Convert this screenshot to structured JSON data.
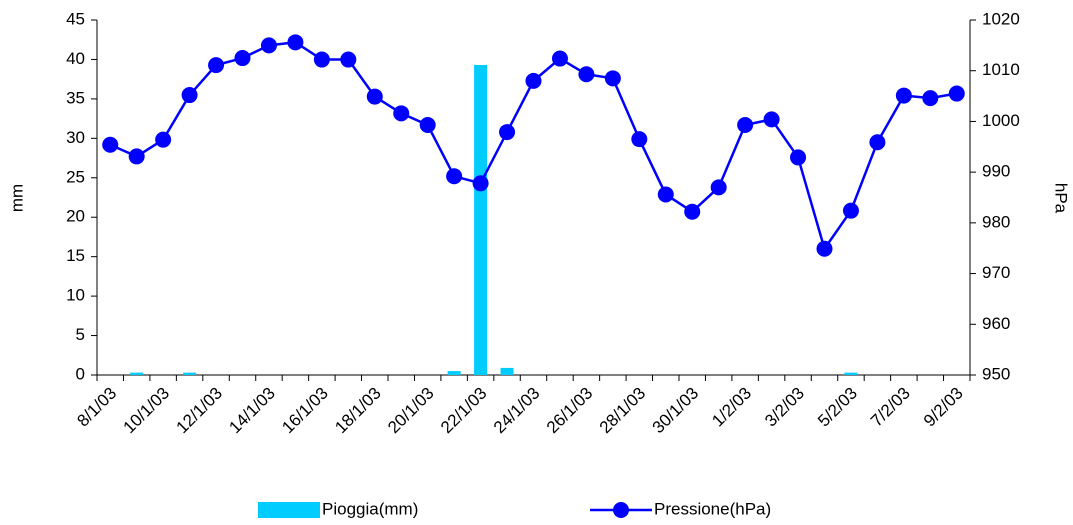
{
  "chart_data": {
    "type": "bar_line",
    "categories": [
      "8/1/03",
      null,
      "10/1/03",
      null,
      "12/1/03",
      null,
      "14/1/03",
      null,
      "16/1/03",
      null,
      "18/1/03",
      null,
      "20/1/03",
      null,
      "22/1/03",
      null,
      "24/1/03",
      null,
      "26/1/03",
      null,
      "28/1/03",
      null,
      "30/1/03",
      null,
      "1/2/03",
      null,
      "3/2/03",
      null,
      "5/2/03",
      null,
      "7/2/03",
      null,
      "9/2/03"
    ],
    "series": [
      {
        "name": "Pioggia(mm)",
        "type": "bar",
        "color": "#00ccff",
        "values": [
          0,
          0.3,
          0,
          0.3,
          0,
          0,
          0,
          0,
          0,
          0,
          0,
          0,
          0,
          0.5,
          39.3,
          0.9,
          0,
          0,
          0,
          0,
          0,
          0,
          0,
          0,
          0,
          0,
          0,
          0,
          0.3,
          0,
          0,
          0,
          0
        ]
      },
      {
        "name": "Pressione(hPa)",
        "type": "line",
        "axis": "y2",
        "color": "#0000ff",
        "values": [
          995.4,
          993.1,
          996.4,
          1005.2,
          1011.1,
          1012.5,
          1015.0,
          1015.6,
          1012.2,
          1012.2,
          1004.9,
          1001.6,
          999.3,
          989.2,
          987.8,
          997.9,
          1008.0,
          1012.4,
          1009.3,
          1008.5,
          996.5,
          985.6,
          982.2,
          987.0,
          999.3,
          1000.4,
          992.9,
          974.9,
          982.4,
          995.9,
          1005.1,
          1004.6,
          1005.5
        ]
      }
    ],
    "y_label": "mm",
    "y2_label": "hPa",
    "ylim": [
      0,
      45
    ],
    "yticks": [
      0,
      5,
      10,
      15,
      20,
      25,
      30,
      35,
      40,
      45
    ],
    "y2lim": [
      950,
      1020
    ],
    "y2ticks": [
      950,
      960,
      970,
      980,
      990,
      1000,
      1010,
      1020
    ]
  }
}
